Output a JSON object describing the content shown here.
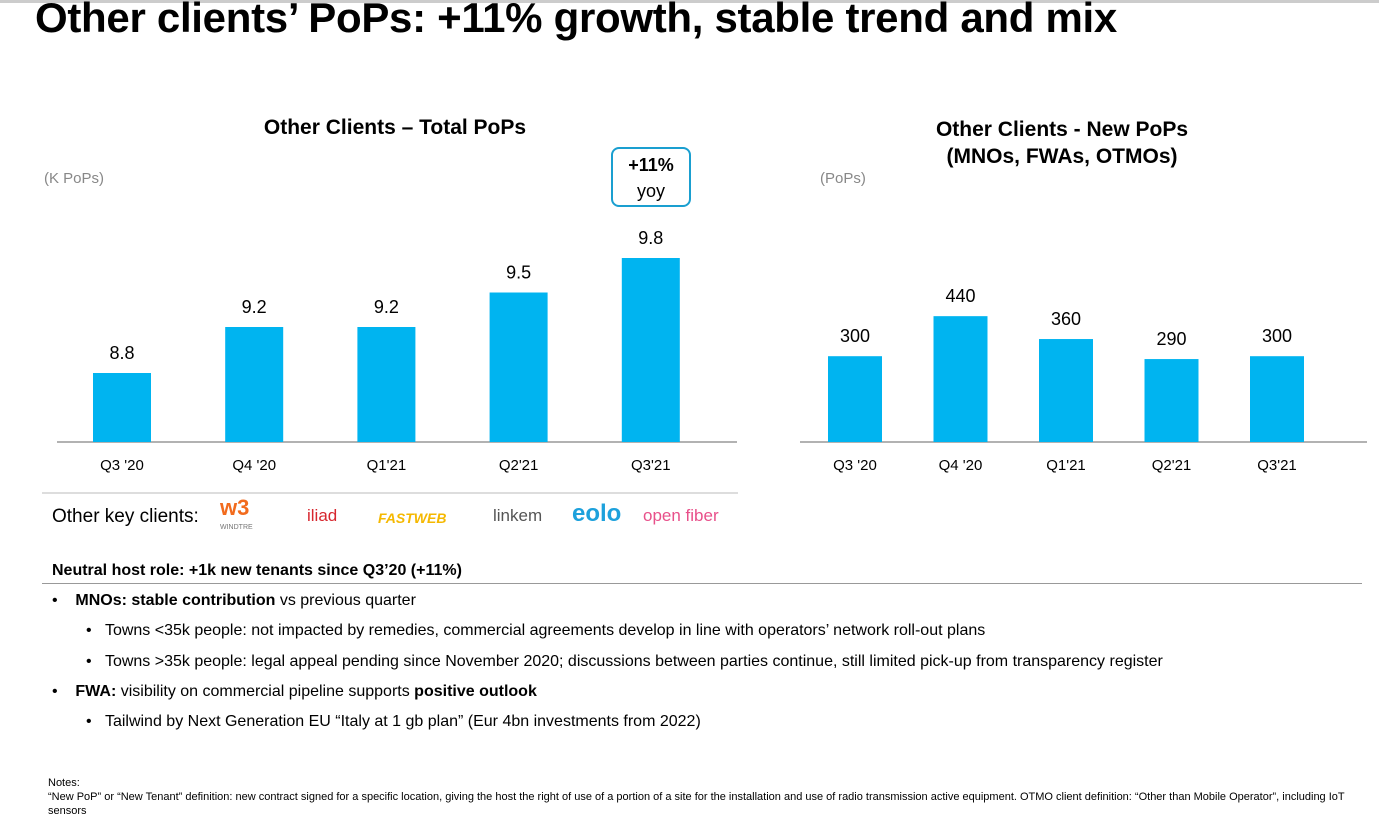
{
  "title": "Other clients’ PoPs: +11% growth, stable trend and mix",
  "colors": {
    "bar": "#00b4f0",
    "badge_border": "#1a9fd0"
  },
  "chart_data": [
    {
      "type": "bar",
      "title": "Other Clients – Total PoPs",
      "ylabel": "(K PoPs)",
      "categories": [
        "Q3 '20",
        "Q4 '20",
        "Q1'21",
        "Q2'21",
        "Q3'21"
      ],
      "values": [
        8.8,
        9.2,
        9.2,
        9.5,
        9.8
      ],
      "labels": [
        "8.8",
        "9.2",
        "9.2",
        "9.5",
        "9.8"
      ],
      "ylim": [
        8.2,
        10
      ],
      "grid": false,
      "annotation": {
        "line1": "+11%",
        "line2": "yoy"
      }
    },
    {
      "type": "bar",
      "title_line1": "Other Clients - New PoPs",
      "title_line2": "(MNOs, FWAs, OTMOs)",
      "ylabel": "(PoPs)",
      "categories": [
        "Q3 '20",
        "Q4 '20",
        "Q1'21",
        "Q2'21",
        "Q3'21"
      ],
      "values": [
        300,
        440,
        360,
        290,
        300
      ],
      "labels": [
        "300",
        "440",
        "360",
        "290",
        "300"
      ],
      "ylim": [
        0,
        560
      ],
      "grid": false
    }
  ],
  "key_clients": {
    "label": "Other key clients:",
    "logos": [
      {
        "text": "w3",
        "sub": "WINDTRE",
        "color": "#f26b1d"
      },
      {
        "text": "iliad",
        "color": "#d7262e"
      },
      {
        "text": "FASTWEB",
        "color": "#f5b800"
      },
      {
        "text": "linkem",
        "color": "#555555"
      },
      {
        "text": "eolo",
        "color": "#1da1dc"
      },
      {
        "text": "open fiber",
        "color": "#e8508a"
      }
    ]
  },
  "section": {
    "title": "Neutral host role: +1k new tenants since Q3’20 (+11%)",
    "b1_bold": "MNOs: stable contribution",
    "b1_rest": " vs previous quarter",
    "b1a": "Towns <35k people: not impacted by remedies, commercial agreements develop in line with operators’ network roll-out plans",
    "b1b": "Towns >35k people: legal appeal pending since November 2020; discussions between parties continue, still limited pick-up from transparency register",
    "b2_bold": "FWA:",
    "b2_rest": " visibility on commercial pipeline supports ",
    "b2_bold2": "positive outlook",
    "b2a": "Tailwind by Next Generation EU “Italy at 1 gb plan” (Eur 4bn investments from 2022)"
  },
  "notes": {
    "title": "Notes:",
    "text": "“New PoP” or “New Tenant” definition: new contract signed for a specific location, giving the host the right of use of a portion of a site for the installation and use of radio transmission active equipment. OTMO client definition: “Other than Mobile Operator”, including IoT sensors"
  }
}
